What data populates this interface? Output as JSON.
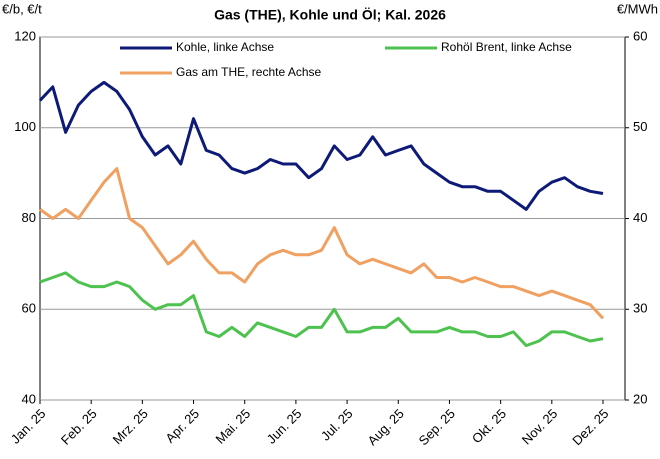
{
  "chart_data": {
    "type": "line",
    "title": "Gas (THE), Kohle und Öl; Kal. 2026",
    "y_label": "€/b, €/t",
    "y2_label": "€/MWh",
    "categories": [
      "Jan. 25",
      null,
      null,
      null,
      "Feb. 25",
      null,
      null,
      null,
      "Mrz. 25",
      null,
      null,
      null,
      "Apr. 25",
      null,
      null,
      null,
      "Mai. 25",
      null,
      null,
      null,
      "Jun. 25",
      null,
      null,
      null,
      "Jul. 25",
      null,
      null,
      null,
      "Aug. 25",
      null,
      null,
      null,
      "Sep. 25",
      null,
      null,
      null,
      "Okt. 25",
      null,
      null,
      null,
      "Nov. 25",
      null,
      null,
      null,
      "Dez. 25"
    ],
    "series": [
      {
        "name": "Kohle, linke Achse",
        "color": "#0d1a78",
        "values": [
          106,
          109,
          99,
          105,
          108,
          110,
          108,
          104,
          98,
          94,
          96,
          92,
          102,
          95,
          94,
          91,
          90,
          91,
          93,
          92,
          92,
          89,
          91,
          96,
          93,
          94,
          98,
          94,
          95,
          96,
          92,
          90,
          88,
          87,
          87,
          86,
          86,
          84,
          82,
          86,
          88,
          89,
          87,
          86,
          85.5
        ]
      },
      {
        "name": "Rohöl Brent, linke Achse",
        "color": "#4ec24e",
        "values": [
          66,
          67,
          68,
          66,
          65,
          65,
          66,
          65,
          62,
          60,
          61,
          61,
          63,
          55,
          54,
          56,
          54,
          57,
          56,
          55,
          54,
          56,
          56,
          60,
          55,
          55,
          56,
          56,
          58,
          55,
          55,
          55,
          56,
          55,
          55,
          54,
          54,
          55,
          52,
          53,
          55,
          55,
          54,
          53,
          53.5
        ]
      },
      {
        "name": "Gas am THE, rechte Achse",
        "color": "#f0a060",
        "axis": "y2",
        "values": [
          41,
          40,
          41,
          40,
          42,
          44,
          45.5,
          40,
          39,
          37,
          35,
          36,
          37.5,
          35.5,
          34,
          34,
          33,
          35,
          36,
          36.5,
          36,
          36,
          36.5,
          39,
          36,
          35,
          35.5,
          35,
          34.5,
          34,
          35,
          33.5,
          33.5,
          33,
          33.5,
          33,
          32.5,
          32.5,
          32,
          31.5,
          32,
          31.5,
          31,
          30.5,
          29
        ]
      }
    ],
    "ylim": [
      40,
      120
    ],
    "yticks": [
      40,
      60,
      80,
      100,
      120
    ],
    "y2lim": [
      20,
      60
    ],
    "y2ticks": [
      20,
      30,
      40,
      50,
      60
    ],
    "grid": true
  }
}
